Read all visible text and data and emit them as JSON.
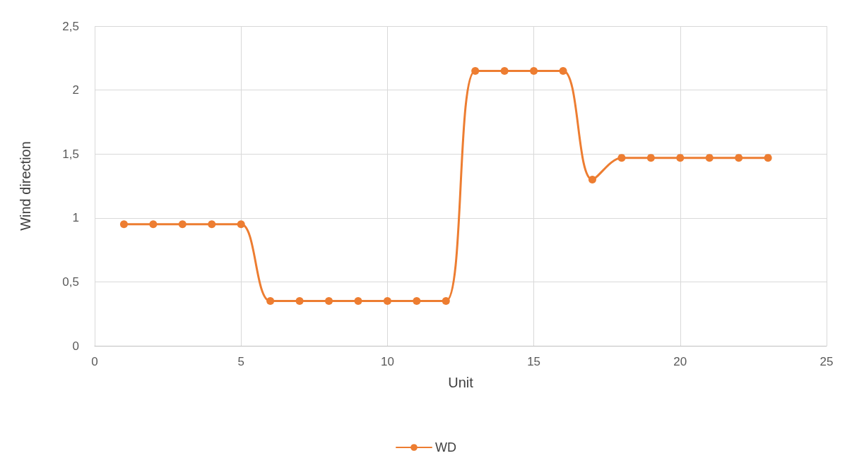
{
  "chart_data": {
    "type": "line",
    "xlabel": "Unit",
    "ylabel": "Wind direction",
    "x": [
      1,
      2,
      3,
      4,
      5,
      6,
      7,
      8,
      9,
      10,
      11,
      12,
      13,
      14,
      15,
      16,
      17,
      18,
      19,
      20,
      21,
      22,
      23
    ],
    "series": [
      {
        "name": "WD",
        "color": "#ed7d31",
        "values": [
          0.95,
          0.95,
          0.95,
          0.95,
          0.95,
          0.35,
          0.35,
          0.35,
          0.35,
          0.35,
          0.35,
          0.35,
          2.15,
          2.15,
          2.15,
          2.15,
          1.3,
          1.47,
          1.47,
          1.47,
          1.47,
          1.47,
          1.47
        ]
      }
    ],
    "xlim": [
      0,
      25
    ],
    "xticks": [
      0,
      5,
      10,
      15,
      20,
      25
    ],
    "ylim": [
      0,
      2.5
    ],
    "yticks": [
      0,
      {
        "value": 0.5,
        "label": "0,5"
      },
      1,
      {
        "value": 1.5,
        "label": "1,5"
      },
      2,
      {
        "value": 2.5,
        "label": "2,5"
      }
    ],
    "grid": true,
    "legend": "bottom",
    "marker": "circle",
    "line_style": "solid"
  }
}
